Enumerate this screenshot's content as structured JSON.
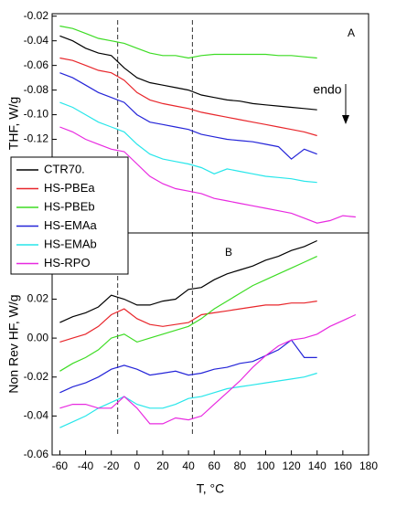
{
  "chart_data": [
    {
      "type": "line",
      "ylabel": "THF, W/g",
      "panel_label": "A",
      "annotation": "endo",
      "x": [
        -60,
        -50,
        -40,
        -30,
        -20,
        -10,
        0,
        10,
        20,
        30,
        40,
        50,
        60,
        70,
        80,
        90,
        100,
        110,
        120,
        130,
        140,
        150,
        160,
        170
      ],
      "xlim": [
        -66,
        180
      ],
      "ylim": [
        -0.196,
        -0.018
      ],
      "yticks": [
        -0.02,
        -0.04,
        -0.06,
        -0.08,
        {
          "value": -0.1,
          "label": "-0.10"
        },
        -0.12
      ],
      "vlines": [
        -15,
        43
      ],
      "series": [
        {
          "name": "CTR70.",
          "color": "#000000",
          "values": [
            -0.036,
            -0.04,
            -0.046,
            -0.05,
            -0.052,
            -0.062,
            -0.07,
            -0.074,
            -0.076,
            -0.078,
            -0.08,
            -0.084,
            -0.086,
            -0.088,
            -0.089,
            -0.091,
            -0.092,
            -0.093,
            -0.094,
            -0.095,
            -0.096,
            null,
            null,
            null
          ]
        },
        {
          "name": "HS-PBEa",
          "color": "#e8262b",
          "values": [
            -0.054,
            -0.056,
            -0.06,
            -0.064,
            -0.066,
            -0.072,
            -0.082,
            -0.088,
            -0.091,
            -0.093,
            -0.095,
            -0.098,
            -0.1,
            -0.102,
            -0.104,
            -0.106,
            -0.108,
            -0.11,
            -0.112,
            -0.114,
            -0.117,
            null,
            null,
            null
          ]
        },
        {
          "name": "HS-PBEb",
          "color": "#3ddc24",
          "values": [
            -0.028,
            -0.03,
            -0.034,
            -0.038,
            -0.04,
            -0.042,
            -0.046,
            -0.05,
            -0.052,
            -0.052,
            -0.054,
            -0.052,
            -0.051,
            -0.051,
            -0.051,
            -0.051,
            -0.051,
            -0.052,
            -0.052,
            -0.053,
            -0.054,
            null,
            null,
            null
          ]
        },
        {
          "name": "HS-EMAa",
          "color": "#2424d8",
          "values": [
            -0.066,
            -0.07,
            -0.076,
            -0.082,
            -0.086,
            -0.09,
            -0.1,
            -0.106,
            -0.108,
            -0.11,
            -0.112,
            -0.116,
            -0.118,
            -0.12,
            -0.121,
            -0.122,
            -0.124,
            -0.126,
            -0.136,
            -0.128,
            -0.132,
            null,
            null,
            null
          ]
        },
        {
          "name": "HS-EMAb",
          "color": "#27e6ea",
          "values": [
            -0.09,
            -0.094,
            -0.1,
            -0.106,
            -0.11,
            -0.114,
            -0.124,
            -0.132,
            -0.136,
            -0.138,
            -0.14,
            -0.143,
            -0.148,
            -0.144,
            -0.146,
            -0.148,
            -0.15,
            -0.151,
            -0.152,
            -0.154,
            -0.155,
            null,
            null,
            null
          ]
        },
        {
          "name": "HS-RPO",
          "color": "#e829e0",
          "values": [
            -0.11,
            -0.114,
            -0.12,
            -0.124,
            -0.128,
            -0.13,
            -0.14,
            -0.15,
            -0.156,
            -0.16,
            -0.162,
            -0.164,
            -0.168,
            -0.17,
            -0.172,
            -0.174,
            -0.176,
            -0.178,
            -0.18,
            -0.184,
            -0.188,
            -0.186,
            -0.182,
            -0.183
          ]
        }
      ]
    },
    {
      "type": "line",
      "ylabel": "Non Rev HF, W/g",
      "xlabel": "T, °C",
      "panel_label": "B",
      "x": [
        -60,
        -50,
        -40,
        -30,
        -20,
        -10,
        0,
        10,
        20,
        30,
        40,
        50,
        60,
        70,
        80,
        90,
        100,
        110,
        120,
        130,
        140,
        150,
        160,
        170
      ],
      "xlim": [
        -66,
        180
      ],
      "ylim": [
        -0.06,
        0.054
      ],
      "xticks": [
        -60,
        -40,
        -20,
        0,
        20,
        40,
        60,
        80,
        100,
        120,
        140,
        160,
        180
      ],
      "yticks": [
        0.02,
        {
          "value": 0,
          "label": "0.00"
        },
        -0.02,
        -0.04,
        -0.06
      ],
      "series": [
        {
          "color": "#000000",
          "values": [
            0.008,
            0.011,
            0.013,
            0.016,
            0.022,
            0.02,
            0.017,
            0.017,
            0.019,
            0.02,
            0.025,
            0.026,
            0.03,
            0.033,
            0.035,
            0.037,
            0.04,
            0.042,
            0.045,
            0.047,
            0.05,
            null,
            null,
            null
          ]
        },
        {
          "color": "#e8262b",
          "values": [
            -0.002,
            0.0,
            0.002,
            0.006,
            0.012,
            0.015,
            0.01,
            0.007,
            0.006,
            0.007,
            0.008,
            0.012,
            0.013,
            0.014,
            0.015,
            0.016,
            0.017,
            0.017,
            0.018,
            0.018,
            0.019,
            null,
            null,
            null
          ]
        },
        {
          "color": "#3ddc24",
          "values": [
            -0.017,
            -0.013,
            -0.01,
            -0.006,
            0.0,
            0.002,
            -0.002,
            0.0,
            0.002,
            0.004,
            0.006,
            0.01,
            0.015,
            0.019,
            0.023,
            0.027,
            0.03,
            0.033,
            0.036,
            0.039,
            0.042,
            null,
            null,
            null
          ]
        },
        {
          "color": "#2424d8",
          "values": [
            -0.028,
            -0.025,
            -0.023,
            -0.02,
            -0.016,
            -0.014,
            -0.016,
            -0.019,
            -0.018,
            -0.017,
            -0.019,
            -0.018,
            -0.016,
            -0.015,
            -0.013,
            -0.012,
            -0.009,
            -0.006,
            -0.001,
            -0.01,
            -0.01,
            null,
            null,
            null
          ]
        },
        {
          "color": "#27e6ea",
          "values": [
            -0.046,
            -0.043,
            -0.04,
            -0.036,
            -0.033,
            -0.03,
            -0.034,
            -0.036,
            -0.036,
            -0.034,
            -0.031,
            -0.03,
            -0.028,
            -0.026,
            -0.025,
            -0.024,
            -0.023,
            -0.022,
            -0.021,
            -0.02,
            -0.018,
            null,
            null,
            null
          ]
        },
        {
          "color": "#e829e0",
          "values": [
            -0.036,
            -0.034,
            -0.034,
            -0.036,
            -0.036,
            -0.03,
            -0.036,
            -0.044,
            -0.044,
            -0.041,
            -0.042,
            -0.04,
            -0.034,
            -0.028,
            -0.022,
            -0.015,
            -0.009,
            -0.004,
            -0.001,
            0.0,
            0.002,
            0.006,
            0.009,
            0.012
          ]
        }
      ]
    }
  ]
}
